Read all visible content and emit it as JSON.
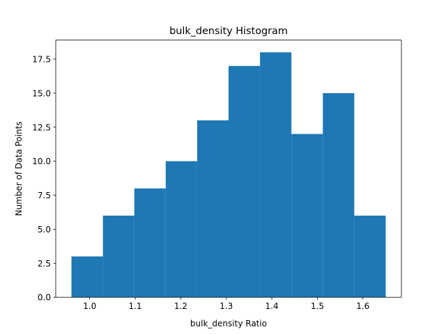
{
  "chart_data": {
    "type": "bar",
    "title": "bulk_density Histogram",
    "xlabel": "bulk_density Ratio",
    "ylabel": "Number of Data Points",
    "bins": [
      {
        "start": 0.96,
        "end": 1.029,
        "count": 3
      },
      {
        "start": 1.029,
        "end": 1.098,
        "count": 6
      },
      {
        "start": 1.098,
        "end": 1.167,
        "count": 8
      },
      {
        "start": 1.167,
        "end": 1.236,
        "count": 10
      },
      {
        "start": 1.236,
        "end": 1.305,
        "count": 13
      },
      {
        "start": 1.305,
        "end": 1.374,
        "count": 17
      },
      {
        "start": 1.374,
        "end": 1.443,
        "count": 18
      },
      {
        "start": 1.443,
        "end": 1.512,
        "count": 12
      },
      {
        "start": 1.512,
        "end": 1.581,
        "count": 15
      },
      {
        "start": 1.581,
        "end": 1.65,
        "count": 6
      }
    ],
    "xlim": [
      0.9255,
      1.6845
    ],
    "ylim": [
      0,
      18.9
    ],
    "xticks": [
      "1.0",
      "1.1",
      "1.2",
      "1.3",
      "1.4",
      "1.5",
      "1.6"
    ],
    "yticks": [
      "0.0",
      "2.5",
      "5.0",
      "7.5",
      "10.0",
      "12.5",
      "15.0",
      "17.5"
    ],
    "bar_color": "#1f77b4",
    "grid": false,
    "legend": "none"
  }
}
